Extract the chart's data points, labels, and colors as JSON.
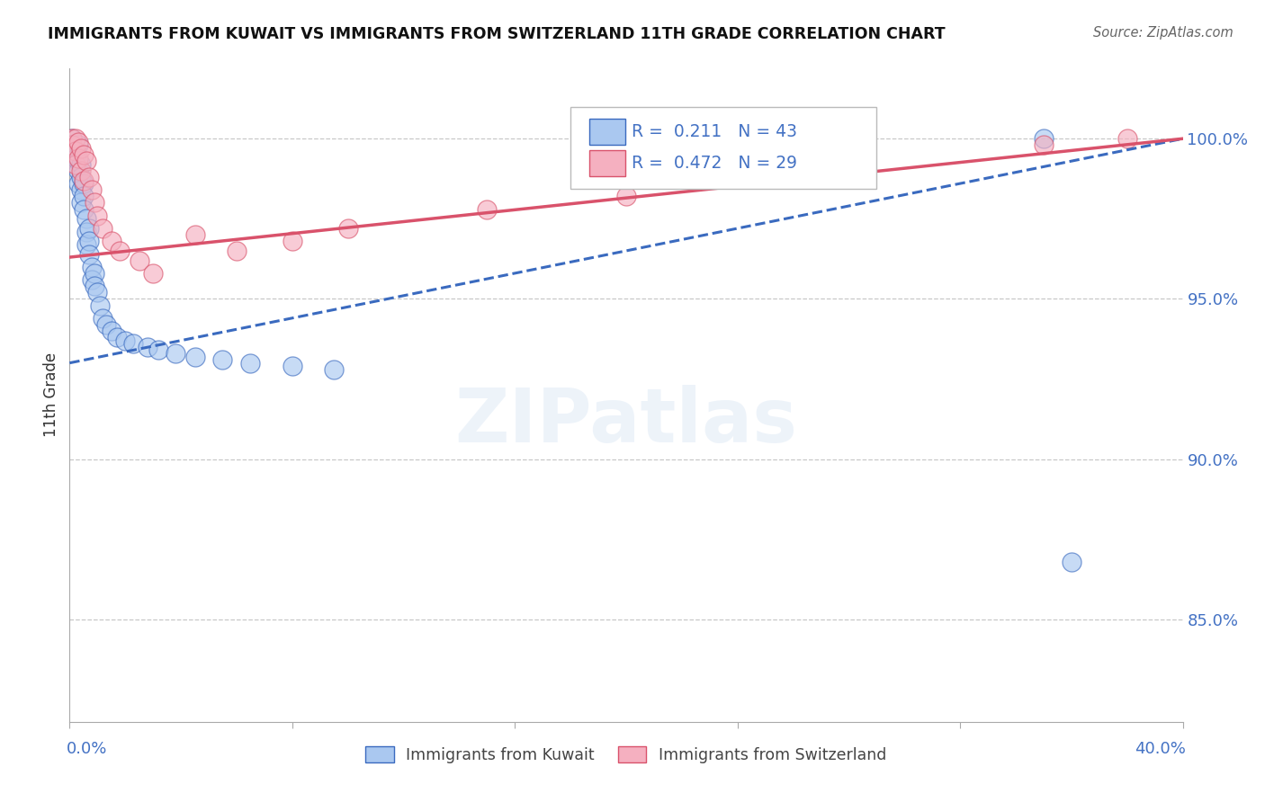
{
  "title": "IMMIGRANTS FROM KUWAIT VS IMMIGRANTS FROM SWITZERLAND 11TH GRADE CORRELATION CHART",
  "source": "Source: ZipAtlas.com",
  "ylabel": "11th Grade",
  "x_min": 0.0,
  "x_max": 0.4,
  "y_min": 0.818,
  "y_max": 1.022,
  "y_ticks": [
    0.85,
    0.9,
    0.95,
    1.0
  ],
  "y_tick_labels": [
    "85.0%",
    "90.0%",
    "95.0%",
    "100.0%"
  ],
  "R1": 0.211,
  "N1": 43,
  "R2": 0.472,
  "N2": 29,
  "color_kuwait": "#aac8f0",
  "color_switzerland": "#f5b0c0",
  "color_trendline_kuwait": "#3a6abf",
  "color_trendline_switzerland": "#d9526b",
  "color_text_blue": "#4472c4",
  "legend1_label": "Immigrants from Kuwait",
  "legend2_label": "Immigrants from Switzerland",
  "kuwait_x": [
    0.001,
    0.001,
    0.002,
    0.002,
    0.003,
    0.003,
    0.003,
    0.003,
    0.004,
    0.004,
    0.004,
    0.004,
    0.005,
    0.005,
    0.005,
    0.006,
    0.006,
    0.006,
    0.007,
    0.007,
    0.007,
    0.008,
    0.008,
    0.009,
    0.009,
    0.01,
    0.011,
    0.012,
    0.013,
    0.015,
    0.017,
    0.02,
    0.023,
    0.028,
    0.032,
    0.038,
    0.045,
    0.055,
    0.065,
    0.08,
    0.095,
    0.35,
    0.36
  ],
  "kuwait_y": [
    1.0,
    0.998,
    0.996,
    0.994,
    0.998,
    0.993,
    0.99,
    0.986,
    0.992,
    0.988,
    0.984,
    0.98,
    0.986,
    0.982,
    0.978,
    0.975,
    0.971,
    0.967,
    0.972,
    0.968,
    0.964,
    0.96,
    0.956,
    0.958,
    0.954,
    0.952,
    0.948,
    0.944,
    0.942,
    0.94,
    0.938,
    0.937,
    0.936,
    0.935,
    0.934,
    0.933,
    0.932,
    0.931,
    0.93,
    0.929,
    0.928,
    1.0,
    0.868
  ],
  "switzerland_x": [
    0.001,
    0.001,
    0.002,
    0.002,
    0.002,
    0.003,
    0.003,
    0.004,
    0.004,
    0.005,
    0.005,
    0.006,
    0.007,
    0.008,
    0.009,
    0.01,
    0.012,
    0.015,
    0.018,
    0.025,
    0.03,
    0.045,
    0.06,
    0.08,
    0.1,
    0.15,
    0.2,
    0.35,
    0.38
  ],
  "switzerland_y": [
    1.0,
    0.998,
    1.0,
    0.996,
    0.992,
    0.999,
    0.994,
    0.997,
    0.99,
    0.995,
    0.987,
    0.993,
    0.988,
    0.984,
    0.98,
    0.976,
    0.972,
    0.968,
    0.965,
    0.962,
    0.958,
    0.97,
    0.965,
    0.968,
    0.972,
    0.978,
    0.982,
    0.998,
    1.0
  ],
  "background_color": "#ffffff"
}
